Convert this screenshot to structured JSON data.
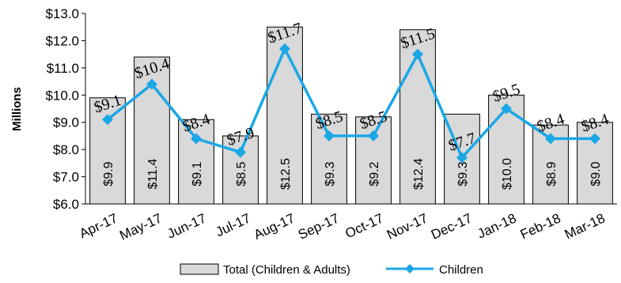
{
  "chart_data": {
    "type": "bar",
    "categories": [
      "Apr-17",
      "May-17",
      "Jun-17",
      "Jul-17",
      "Aug-17",
      "Sep-17",
      "Oct-17",
      "Nov-17",
      "Dec-17",
      "Jan-18",
      "Feb-18",
      "Mar-18"
    ],
    "series": [
      {
        "name": "Total (Children & Adults)",
        "type": "bar",
        "values": [
          9.9,
          11.4,
          9.1,
          8.5,
          12.5,
          9.3,
          9.2,
          12.4,
          9.3,
          10.0,
          8.9,
          9.0
        ],
        "labels": [
          "$9.9",
          "$11.4",
          "$9.1",
          "$8.5",
          "$12.5",
          "$9.3",
          "$9.2",
          "$12.4",
          "$9.3",
          "$10.0",
          "$8.9",
          "$9.0"
        ]
      },
      {
        "name": "Children",
        "type": "line",
        "values": [
          9.1,
          10.4,
          8.4,
          7.9,
          11.7,
          8.5,
          8.5,
          11.5,
          7.7,
          9.5,
          8.4,
          8.4
        ],
        "labels": [
          "$9.1",
          "$10.4",
          "$8.4",
          "$7.9",
          "$11.7",
          "$8.5",
          "$8.5",
          "$11.5",
          "$7.7",
          "$9.5",
          "$8.4",
          "$8.4"
        ]
      }
    ],
    "ylabel": "Millions",
    "ylim": [
      6.0,
      13.0
    ],
    "yticks": [
      "$6.0",
      "$7.0",
      "$8.0",
      "$9.0",
      "$10.0",
      "$11.0",
      "$12.0",
      "$13.0"
    ],
    "grid": false,
    "legend_position": "bottom",
    "colors": {
      "bar_fill": "#d9d9d9",
      "bar_stroke": "#000000",
      "line": "#1aa7e6"
    }
  }
}
